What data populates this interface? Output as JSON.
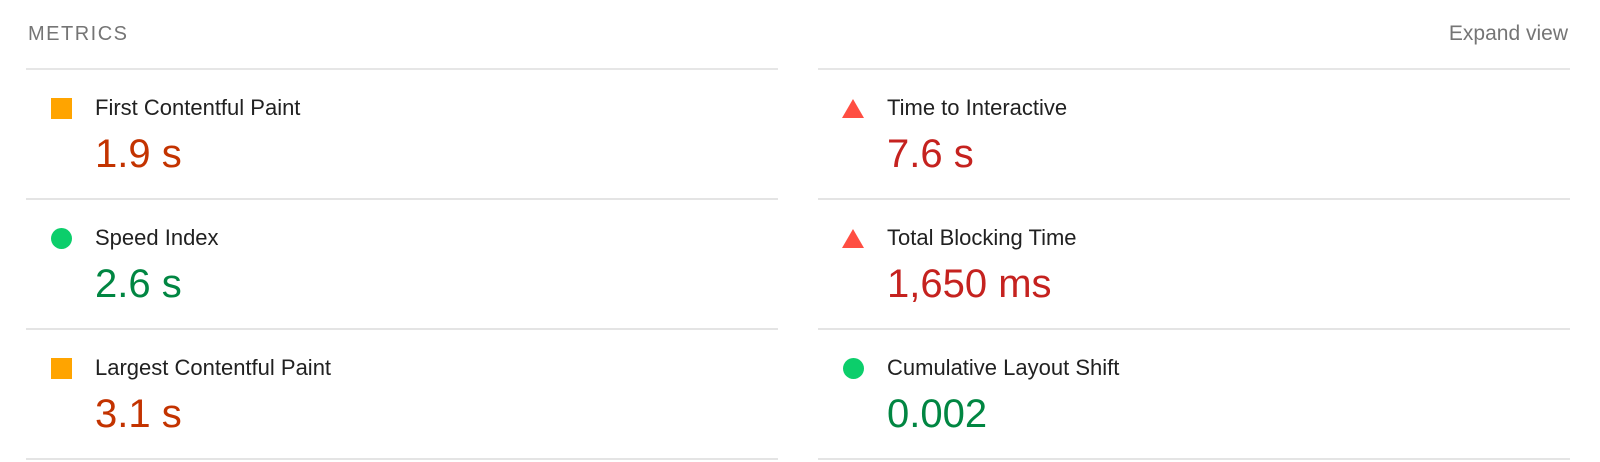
{
  "panel": {
    "title": "METRICS",
    "expand_button_label": "Expand view"
  },
  "metrics": {
    "left": [
      {
        "label": "First Contentful Paint",
        "value": "1.9 s",
        "status": "average",
        "icon": "square-icon"
      },
      {
        "label": "Speed Index",
        "value": "2.6 s",
        "status": "pass",
        "icon": "circle-icon"
      },
      {
        "label": "Largest Contentful Paint",
        "value": "3.1 s",
        "status": "average",
        "icon": "square-icon"
      }
    ],
    "right": [
      {
        "label": "Time to Interactive",
        "value": "7.6 s",
        "status": "fail",
        "icon": "triangle-icon"
      },
      {
        "label": "Total Blocking Time",
        "value": "1,650 ms",
        "status": "fail",
        "icon": "triangle-icon"
      },
      {
        "label": "Cumulative Layout Shift",
        "value": "0.002",
        "status": "pass",
        "icon": "circle-icon"
      }
    ]
  },
  "colors": {
    "pass_icon": "#0CCE6B",
    "pass_text": "#018642",
    "average_icon": "#FFA400",
    "average_text": "#C33300",
    "fail_icon": "#FF4E42",
    "fail_text": "#C5221F",
    "header_text": "#757575",
    "label_text": "#212121",
    "divider": "#E4E4E4"
  }
}
